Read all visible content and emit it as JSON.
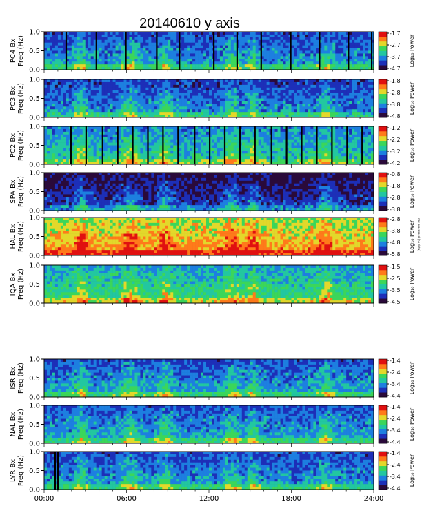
{
  "title": "20140610 y axis",
  "time_ticks": [
    "00:00",
    "06:00",
    "12:00",
    "18:00",
    "24:00"
  ],
  "freq_ticks": [
    "0.0",
    "0.5",
    "1.0"
  ],
  "freq_unit_label": "Freq (Hz)",
  "colorbar_label": "Log₁₀ Power",
  "side_note": "not processed (no data)",
  "chart_data": {
    "type": "heatmap",
    "xlabel": "",
    "x_range_hours": [
      0,
      24
    ],
    "ylim": [
      0,
      1.0
    ],
    "colormap": [
      "#2a0a3a",
      "#1d2fb8",
      "#1d7fe0",
      "#22c7a0",
      "#3bd65a",
      "#e3d82a",
      "#ff7a1a",
      "#e01010"
    ],
    "panels": [
      {
        "station_label": "PC4 Bx",
        "cbar_ticks": [
          "-1.7",
          "-2.7",
          "-3.7",
          "-4.7"
        ],
        "zlim": [
          -4.7,
          -1.7
        ],
        "base": 0.2,
        "gaps": [
          1.55,
          3.75,
          5.9,
          8.15,
          9.8,
          12.3,
          14.0,
          15.75,
          17.9,
          20.0,
          22.1,
          23.8
        ]
      },
      {
        "station_label": "PC3 Bx",
        "cbar_ticks": [
          "-1.8",
          "-2.8",
          "-3.8",
          "-4.8"
        ],
        "zlim": [
          -4.8,
          -1.8
        ],
        "base": 0.18,
        "gaps": []
      },
      {
        "station_label": "PC2 Bx",
        "cbar_ticks": [
          "-1.2",
          "-2.2",
          "-3.2",
          "-4.2"
        ],
        "zlim": [
          -4.2,
          -1.2
        ],
        "base": 0.3,
        "gaps": [
          1.9,
          3.0,
          4.2,
          5.3,
          6.4,
          7.5,
          8.6,
          9.7,
          10.9,
          12.0,
          13.1,
          14.2,
          15.3,
          16.5,
          17.6,
          18.7,
          19.8,
          20.9,
          22.0,
          23.1
        ]
      },
      {
        "station_label": "SPA Bx",
        "cbar_ticks": [
          "-0.8",
          "-1.8",
          "-2.8",
          "-3.8"
        ],
        "zlim": [
          -3.8,
          -0.8
        ],
        "base": 0.04,
        "gaps": []
      },
      {
        "station_label": "HAL Bx",
        "cbar_ticks": [
          "-2.8",
          "-3.8",
          "-4.8",
          "-5.8"
        ],
        "zlim": [
          -5.8,
          -2.8
        ],
        "base": 0.62,
        "gaps": []
      },
      {
        "station_label": "IQA Bx",
        "cbar_ticks": [
          "-1.5",
          "-2.5",
          "-3.5",
          "-4.5"
        ],
        "zlim": [
          -4.5,
          -1.5
        ],
        "base": 0.36,
        "gaps": []
      },
      {
        "station_label": "ISR Bx",
        "cbar_ticks": [
          "-1.4",
          "-2.4",
          "-3.4",
          "-4.4"
        ],
        "zlim": [
          -4.4,
          -1.4
        ],
        "base": 0.22,
        "gaps": []
      },
      {
        "station_label": "NAL Bx",
        "cbar_ticks": [
          "-1.4",
          "-2.4",
          "-3.4",
          "-4.4"
        ],
        "zlim": [
          -4.4,
          -1.4
        ],
        "base": 0.22,
        "gaps": []
      },
      {
        "station_label": "LYR Bx",
        "cbar_ticks": [
          "-1.4",
          "-2.4",
          "-3.4",
          "-4.4"
        ],
        "zlim": [
          -4.4,
          -1.4
        ],
        "base": 0.2,
        "gaps": [
          0.75,
          0.95
        ]
      }
    ]
  }
}
